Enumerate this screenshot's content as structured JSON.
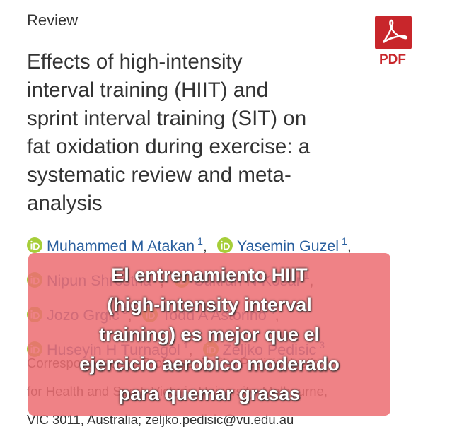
{
  "header": {
    "label": "Review",
    "pdf_label": "PDF"
  },
  "title_lines": [
    "Effects of high-intensity",
    "interval training (HIIT) and",
    "sprint interval training (SIT) on",
    "fat oxidation during exercise: a",
    "systematic review and meta-",
    "analysis"
  ],
  "authors": [
    {
      "name": "Muhammed M Atakan",
      "sup": "1",
      "sep": ","
    },
    {
      "name": "Yasemin Guzel",
      "sup": "1",
      "sep": ","
    },
    {
      "name": "Nipun Shrestha",
      "sup": "2",
      "sep": ","
    },
    {
      "name": "Sukran N Kosar",
      "sup": "1",
      "sep": ","
    },
    {
      "name": "Jozo Grgic",
      "sup": "3",
      "sep": ","
    },
    {
      "name": "Todd A Astorino",
      "sup": "4",
      "sep": ","
    },
    {
      "name": "Huseyin H Turnagol",
      "sup": "1",
      "sep": ","
    },
    {
      "name": "Zeljko Pedisic",
      "sup": "3"
    }
  ],
  "correspondence_lines": [
    "Correspondence to Professor Zeljko Pedisic, Institute",
    "for Health and Sport, Victoria University, Melbourne,",
    "VIC 3011, Australia; zeljko.pedisic@vu.edu.au"
  ],
  "overlay_lines": [
    "El entrenamiento HIIT",
    "(high-intensity interval",
    "training) es mejor que el",
    "ejercicio aerobico moderado",
    "para quemar grasas"
  ]
}
